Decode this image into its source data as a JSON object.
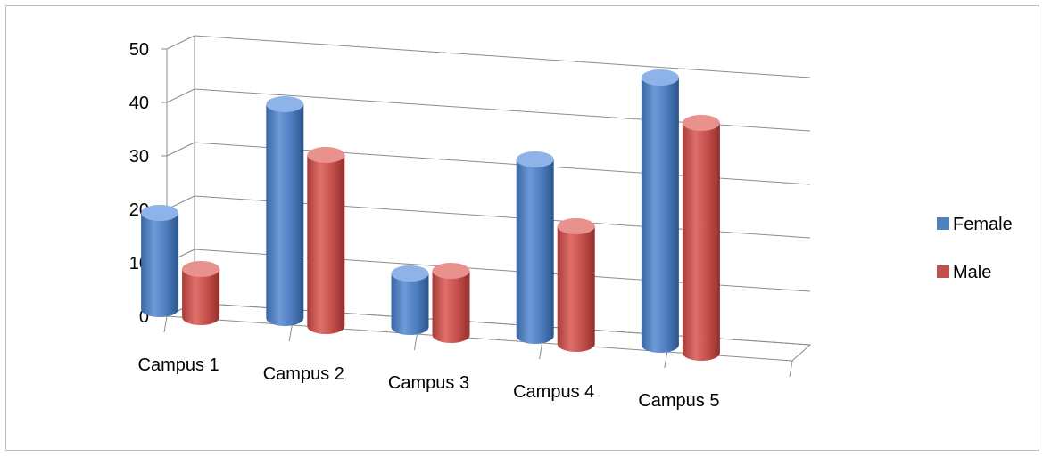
{
  "chart_data": {
    "type": "bar",
    "subtype": "3d-cylinder",
    "categories": [
      "Campus 1",
      "Campus 2",
      "Campus 3",
      "Campus 4",
      "Campus 5"
    ],
    "series": [
      {
        "name": "Female",
        "values": [
          18,
          40,
          10,
          33,
          50
        ],
        "color": "#4f81bd"
      },
      {
        "name": "Male",
        "values": [
          9,
          32,
          12,
          22,
          43
        ],
        "color": "#c0504d"
      }
    ],
    "ylim": [
      0,
      50
    ],
    "yticks": [
      "0",
      "10",
      "20",
      "30",
      "40",
      "50"
    ],
    "grid": true,
    "legend_position": "right"
  }
}
